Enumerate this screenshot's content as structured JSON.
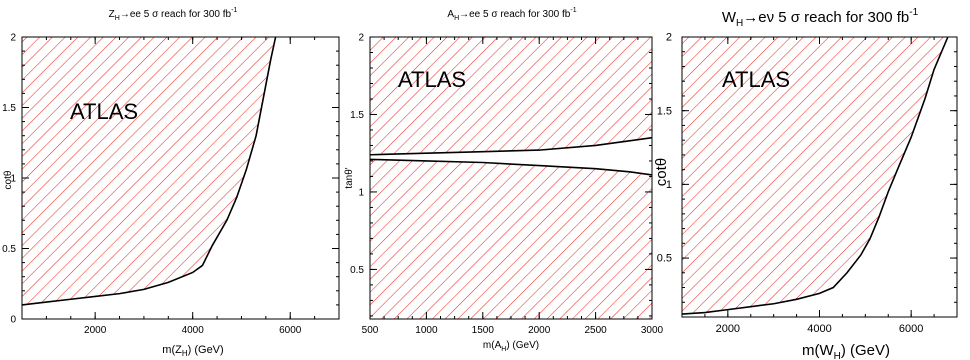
{
  "hatch_color": "#e8332c",
  "chart_data": [
    {
      "type": "area",
      "title": "Z_H→ee   5 σ reach for 300 fb^-1",
      "title_parts": {
        "a": "Z",
        "a_sub": "H",
        "b": "→ee   5 σ reach for 300 fb",
        "c_sup": "-1"
      },
      "xlabel": "m(Z_H) (GeV)",
      "xlabel_parts": {
        "a": "m(Z",
        "a_sub": "H",
        "b": ") (GeV)"
      },
      "ylabel": "cotθ",
      "watermark": "ATLAS",
      "xlim": [
        500,
        7000
      ],
      "ylim": [
        0,
        2
      ],
      "xticks": [
        "2000",
        "4000",
        "6000"
      ],
      "yticks": [
        "0",
        "0.5",
        "1",
        "1.5",
        "2"
      ],
      "excluded_region": "left of curve",
      "series": [
        {
          "x": [
            500,
            1000,
            1500,
            2000,
            2500,
            3000,
            3500,
            4000,
            4200,
            4400,
            4700,
            4900,
            5100,
            5300,
            5400,
            5500,
            5600,
            5700
          ],
          "y": [
            0.1,
            0.12,
            0.14,
            0.16,
            0.18,
            0.21,
            0.26,
            0.33,
            0.38,
            0.52,
            0.7,
            0.86,
            1.06,
            1.3,
            1.48,
            1.66,
            1.84,
            2.0
          ]
        }
      ]
    },
    {
      "type": "area",
      "title": "A_H→ee   5 σ reach for 300 fb^-1",
      "title_parts": {
        "a": "A",
        "a_sub": "H",
        "b": "→ee   5 σ reach for 300 fb",
        "c_sup": "-1"
      },
      "xlabel": "m(A_H) (GeV)",
      "xlabel_parts": {
        "a": "m(A",
        "a_sub": "H",
        "b": ") (GeV)"
      },
      "ylabel": "tanθ'",
      "watermark": "ATLAS",
      "xlim": [
        500,
        3000
      ],
      "ylim": [
        0.18,
        2
      ],
      "xticks": [
        "500",
        "1000",
        "1500",
        "2000",
        "2500",
        "3000"
      ],
      "yticks": [
        "0.5",
        "1",
        "1.5",
        "2"
      ],
      "excluded_region": "outside band",
      "series": [
        {
          "name": "upper",
          "x": [
            500,
            1000,
            1500,
            2000,
            2500,
            2800,
            3000
          ],
          "y": [
            1.24,
            1.25,
            1.26,
            1.27,
            1.3,
            1.33,
            1.35
          ]
        },
        {
          "name": "lower",
          "x": [
            500,
            1000,
            1500,
            2000,
            2500,
            2800,
            3000
          ],
          "y": [
            1.21,
            1.2,
            1.19,
            1.17,
            1.15,
            1.13,
            1.11
          ]
        }
      ]
    },
    {
      "type": "area",
      "title": "W_H→eν   5 σ reach for 300 fb^-1",
      "title_parts": {
        "a": "W",
        "a_sub": "H",
        "b": "→eν   5 σ reach for 300 fb",
        "c_sup": "-1"
      },
      "xlabel": "m(W_H) (GeV)",
      "xlabel_parts": {
        "a": "m(W",
        "a_sub": "H",
        "b": ") (GeV)"
      },
      "ylabel": "cotθ",
      "watermark": "ATLAS",
      "xlim": [
        1000,
        7000
      ],
      "ylim": [
        0.1,
        2
      ],
      "xticks": [
        "2000",
        "4000",
        "6000"
      ],
      "yticks": [
        "0.5",
        "1",
        "1.5",
        "2"
      ],
      "excluded_region": "left of curve",
      "series": [
        {
          "x": [
            1000,
            1500,
            2000,
            2500,
            3000,
            3500,
            4000,
            4300,
            4600,
            4900,
            5100,
            5300,
            5500,
            5700,
            6000,
            6300,
            6500,
            6800
          ],
          "y": [
            0.12,
            0.13,
            0.15,
            0.17,
            0.19,
            0.22,
            0.26,
            0.3,
            0.4,
            0.52,
            0.63,
            0.78,
            0.95,
            1.1,
            1.32,
            1.58,
            1.78,
            2.0
          ]
        }
      ]
    }
  ]
}
